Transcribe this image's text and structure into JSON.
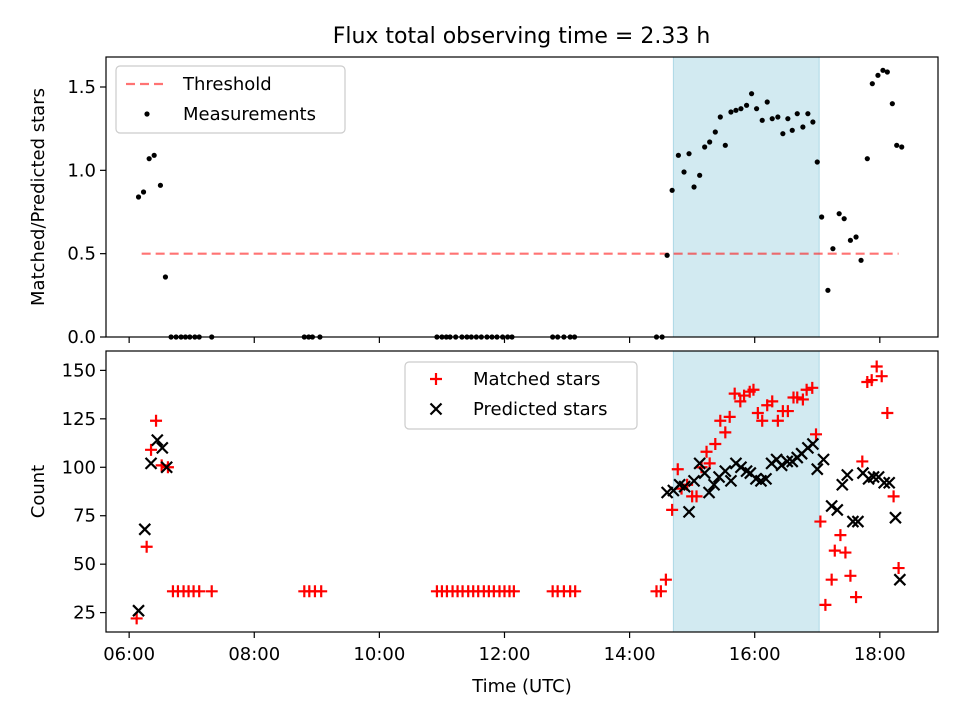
{
  "figure": {
    "title": "Flux total observing time = 2.33 h"
  },
  "chart_data": [
    {
      "type": "scatter",
      "ylabel": "Matched/Predicted stars",
      "xlabel": "",
      "xlim": [
        5.63,
        18.93
      ],
      "ylim": [
        0,
        1.68
      ],
      "x_ticks": [
        6,
        8,
        10,
        12,
        14,
        16,
        18
      ],
      "y_ticks": [
        0.0,
        0.5,
        1.0,
        1.5
      ],
      "y_tick_labels": [
        "0.0",
        "0.5",
        "1.0",
        "1.5"
      ],
      "grid": false,
      "legend": {
        "placement": "top-left",
        "entries": [
          "Threshold",
          "Measurements"
        ]
      },
      "shaded_region": {
        "x": [
          14.7,
          17.03
        ],
        "color": "#add8e6"
      },
      "colors": {
        "threshold": "#ff0000",
        "measurements": "#000000",
        "shade": "#add8e6"
      },
      "series": [
        {
          "name": "Threshold",
          "kind": "dashed-line",
          "x": [
            6.2,
            18.3
          ],
          "y": [
            0.5,
            0.5
          ]
        },
        {
          "name": "Measurements",
          "kind": "points",
          "points": [
            [
              6.15,
              0.84
            ],
            [
              6.23,
              0.87
            ],
            [
              6.32,
              1.07
            ],
            [
              6.4,
              1.09
            ],
            [
              6.5,
              0.91
            ],
            [
              6.58,
              0.36
            ],
            [
              6.67,
              0
            ],
            [
              6.75,
              0
            ],
            [
              6.83,
              0
            ],
            [
              6.9,
              0
            ],
            [
              6.97,
              0
            ],
            [
              7.05,
              0
            ],
            [
              7.12,
              0
            ],
            [
              7.32,
              0
            ],
            [
              8.8,
              0
            ],
            [
              8.87,
              0
            ],
            [
              8.93,
              0
            ],
            [
              9.05,
              0
            ],
            [
              10.92,
              0
            ],
            [
              11.0,
              0
            ],
            [
              11.07,
              0
            ],
            [
              11.13,
              0
            ],
            [
              11.22,
              0
            ],
            [
              11.32,
              0
            ],
            [
              11.4,
              0
            ],
            [
              11.47,
              0
            ],
            [
              11.55,
              0
            ],
            [
              11.63,
              0
            ],
            [
              11.72,
              0
            ],
            [
              11.8,
              0
            ],
            [
              11.88,
              0
            ],
            [
              11.97,
              0
            ],
            [
              12.05,
              0
            ],
            [
              12.12,
              0
            ],
            [
              12.77,
              0
            ],
            [
              12.85,
              0
            ],
            [
              12.95,
              0
            ],
            [
              13.05,
              0
            ],
            [
              13.12,
              0
            ],
            [
              14.43,
              0
            ],
            [
              14.52,
              0
            ],
            [
              14.6,
              0.49
            ],
            [
              14.68,
              0.88
            ],
            [
              14.78,
              1.09
            ],
            [
              14.87,
              0.99
            ],
            [
              14.95,
              1.1
            ],
            [
              15.03,
              0.9
            ],
            [
              15.12,
              0.97
            ],
            [
              15.2,
              1.14
            ],
            [
              15.28,
              1.17
            ],
            [
              15.37,
              1.23
            ],
            [
              15.45,
              1.32
            ],
            [
              15.53,
              1.15
            ],
            [
              15.62,
              1.35
            ],
            [
              15.7,
              1.36
            ],
            [
              15.78,
              1.37
            ],
            [
              15.87,
              1.39
            ],
            [
              15.95,
              1.46
            ],
            [
              16.03,
              1.37
            ],
            [
              16.12,
              1.3
            ],
            [
              16.2,
              1.41
            ],
            [
              16.28,
              1.31
            ],
            [
              16.37,
              1.32
            ],
            [
              16.45,
              1.22
            ],
            [
              16.53,
              1.31
            ],
            [
              16.6,
              1.24
            ],
            [
              16.68,
              1.34
            ],
            [
              16.77,
              1.26
            ],
            [
              16.85,
              1.34
            ],
            [
              16.93,
              1.29
            ],
            [
              17.0,
              1.05
            ],
            [
              17.07,
              0.72
            ],
            [
              17.17,
              0.28
            ],
            [
              17.25,
              0.53
            ],
            [
              17.35,
              0.74
            ],
            [
              17.43,
              0.71
            ],
            [
              17.53,
              0.58
            ],
            [
              17.62,
              0.6
            ],
            [
              17.7,
              0.46
            ],
            [
              17.8,
              1.07
            ],
            [
              17.88,
              1.52
            ],
            [
              17.97,
              1.57
            ],
            [
              18.05,
              1.6
            ],
            [
              18.12,
              1.59
            ],
            [
              18.2,
              1.4
            ],
            [
              18.27,
              1.15
            ],
            [
              18.35,
              1.14
            ]
          ]
        }
      ]
    },
    {
      "type": "scatter",
      "ylabel": "Count",
      "xlabel": "Time (UTC)",
      "xlim": [
        5.63,
        18.93
      ],
      "ylim": [
        15,
        160
      ],
      "x_ticks": [
        6,
        8,
        10,
        12,
        14,
        16,
        18
      ],
      "x_tick_labels": [
        "06:00",
        "08:00",
        "10:00",
        "12:00",
        "14:00",
        "16:00",
        "18:00"
      ],
      "y_ticks": [
        25,
        50,
        75,
        100,
        125,
        150
      ],
      "y_tick_labels": [
        "25",
        "50",
        "75",
        "100",
        "125",
        "150"
      ],
      "grid": false,
      "legend": {
        "placement": "top-center",
        "entries": [
          "Matched stars",
          "Predicted stars"
        ]
      },
      "shaded_region": {
        "x": [
          14.7,
          17.03
        ],
        "color": "#add8e6"
      },
      "colors": {
        "matched": "#ff0000",
        "predicted": "#000000"
      },
      "series": [
        {
          "name": "Matched stars",
          "marker": "+",
          "points": [
            [
              6.12,
              22
            ],
            [
              6.28,
              59
            ],
            [
              6.35,
              109
            ],
            [
              6.43,
              124
            ],
            [
              6.52,
              101
            ],
            [
              6.62,
              100
            ],
            [
              6.7,
              36
            ],
            [
              6.78,
              36
            ],
            [
              6.87,
              36
            ],
            [
              6.95,
              36
            ],
            [
              7.03,
              36
            ],
            [
              7.12,
              36
            ],
            [
              7.32,
              36
            ],
            [
              8.8,
              36
            ],
            [
              8.88,
              36
            ],
            [
              8.97,
              36
            ],
            [
              9.07,
              36
            ],
            [
              10.92,
              36
            ],
            [
              11.0,
              36
            ],
            [
              11.08,
              36
            ],
            [
              11.17,
              36
            ],
            [
              11.25,
              36
            ],
            [
              11.33,
              36
            ],
            [
              11.42,
              36
            ],
            [
              11.5,
              36
            ],
            [
              11.58,
              36
            ],
            [
              11.67,
              36
            ],
            [
              11.75,
              36
            ],
            [
              11.83,
              36
            ],
            [
              11.92,
              36
            ],
            [
              12.0,
              36
            ],
            [
              12.08,
              36
            ],
            [
              12.15,
              36
            ],
            [
              12.77,
              36
            ],
            [
              12.85,
              36
            ],
            [
              12.95,
              36
            ],
            [
              13.05,
              36
            ],
            [
              13.13,
              36
            ],
            [
              14.43,
              36
            ],
            [
              14.5,
              36
            ],
            [
              14.58,
              42
            ],
            [
              14.68,
              78
            ],
            [
              14.77,
              99
            ],
            [
              14.83,
              89
            ],
            [
              14.92,
              91
            ],
            [
              15.0,
              85
            ],
            [
              15.07,
              85
            ],
            [
              15.15,
              100
            ],
            [
              15.23,
              108
            ],
            [
              15.28,
              102
            ],
            [
              15.37,
              112
            ],
            [
              15.45,
              124
            ],
            [
              15.53,
              118
            ],
            [
              15.6,
              126
            ],
            [
              15.68,
              138
            ],
            [
              15.77,
              134
            ],
            [
              15.83,
              137
            ],
            [
              15.92,
              139
            ],
            [
              15.98,
              140
            ],
            [
              16.05,
              128
            ],
            [
              16.12,
              124
            ],
            [
              16.2,
              132
            ],
            [
              16.28,
              134
            ],
            [
              16.37,
              124
            ],
            [
              16.45,
              129
            ],
            [
              16.53,
              129
            ],
            [
              16.62,
              136
            ],
            [
              16.68,
              136
            ],
            [
              16.77,
              135
            ],
            [
              16.83,
              140
            ],
            [
              16.92,
              141
            ],
            [
              16.98,
              117
            ],
            [
              17.05,
              72
            ],
            [
              17.13,
              29
            ],
            [
              17.23,
              42
            ],
            [
              17.28,
              57
            ],
            [
              17.37,
              65
            ],
            [
              17.45,
              56
            ],
            [
              17.53,
              44
            ],
            [
              17.62,
              33
            ],
            [
              17.72,
              103
            ],
            [
              17.8,
              144
            ],
            [
              17.87,
              145
            ],
            [
              17.95,
              152
            ],
            [
              18.03,
              147
            ],
            [
              18.12,
              128
            ],
            [
              18.22,
              85
            ],
            [
              18.3,
              48
            ]
          ]
        },
        {
          "name": "Predicted stars",
          "marker": "x",
          "points": [
            [
              6.15,
              26
            ],
            [
              6.25,
              68
            ],
            [
              6.35,
              102
            ],
            [
              6.45,
              114
            ],
            [
              6.53,
              110
            ],
            [
              6.6,
              100
            ],
            [
              14.6,
              87
            ],
            [
              14.7,
              88
            ],
            [
              14.8,
              91
            ],
            [
              14.88,
              90
            ],
            [
              14.95,
              77
            ],
            [
              15.03,
              93
            ],
            [
              15.12,
              102
            ],
            [
              15.2,
              97
            ],
            [
              15.27,
              87
            ],
            [
              15.35,
              91
            ],
            [
              15.43,
              95
            ],
            [
              15.53,
              98
            ],
            [
              15.62,
              93
            ],
            [
              15.7,
              102
            ],
            [
              15.78,
              100
            ],
            [
              15.87,
              98
            ],
            [
              15.93,
              97
            ],
            [
              16.02,
              94
            ],
            [
              16.1,
              93
            ],
            [
              16.18,
              94
            ],
            [
              16.27,
              102
            ],
            [
              16.35,
              104
            ],
            [
              16.43,
              101
            ],
            [
              16.52,
              103
            ],
            [
              16.6,
              103
            ],
            [
              16.68,
              105
            ],
            [
              16.75,
              107
            ],
            [
              16.85,
              110
            ],
            [
              16.93,
              112
            ],
            [
              17.0,
              99
            ],
            [
              17.1,
              104
            ],
            [
              17.23,
              80
            ],
            [
              17.32,
              78
            ],
            [
              17.4,
              91
            ],
            [
              17.48,
              96
            ],
            [
              17.57,
              72
            ],
            [
              17.65,
              72
            ],
            [
              17.73,
              97
            ],
            [
              17.82,
              94
            ],
            [
              17.9,
              95
            ],
            [
              17.98,
              95
            ],
            [
              18.07,
              92
            ],
            [
              18.15,
              92
            ],
            [
              18.25,
              74
            ],
            [
              18.32,
              42
            ]
          ]
        }
      ]
    }
  ]
}
